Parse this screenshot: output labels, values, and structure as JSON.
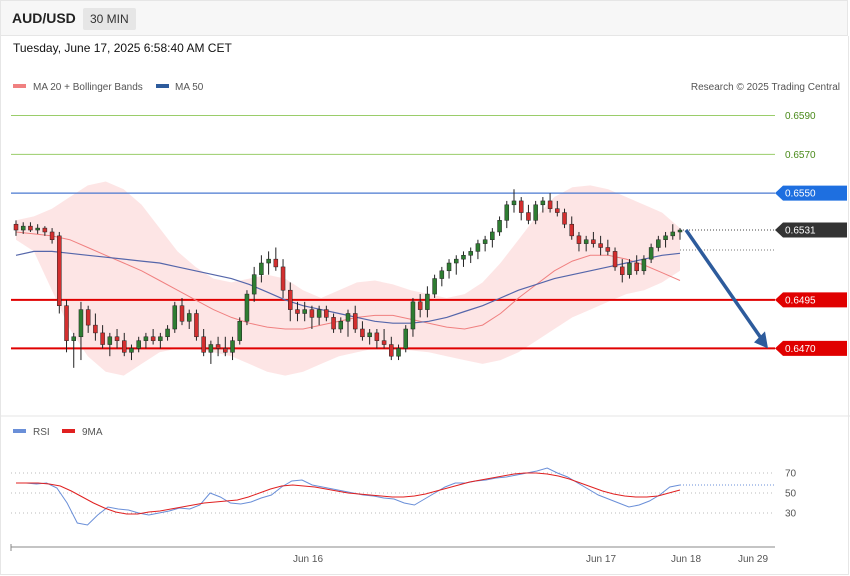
{
  "header": {
    "symbol": "AUD/USD",
    "timeframe": "30 MIN",
    "timestamp": "Tuesday, June 17, 2025 6:58:40 AM CET"
  },
  "legend": {
    "bb": "MA 20 + Bollinger Bands",
    "ma50": "MA 50",
    "credit": "Research © 2025 Trading Central"
  },
  "rsi_legend": {
    "rsi": "RSI",
    "ma9": "9MA"
  },
  "colors": {
    "bull": "#2e7d32",
    "bear": "#d32f2f",
    "band": "#fde0e0",
    "ma20": "#f08080",
    "ma50": "#5566aa",
    "arrow": "#2d5b9c",
    "rsi": "#6a8fd8",
    "rsi_ma": "#e02020"
  },
  "chart_data": [
    {
      "type": "candlestick",
      "title": "AUD/USD 30 MIN",
      "x_ticks": [
        "Jun 16",
        "Jun 17",
        "Jun 18",
        "Jun 29"
      ],
      "ylim": [
        0.6446,
        0.6598
      ],
      "levels": [
        {
          "label": "0.6590",
          "value": 0.659,
          "kind": "target"
        },
        {
          "label": "0.6570",
          "value": 0.657,
          "kind": "target"
        },
        {
          "label": "0.6550",
          "value": 0.655,
          "kind": "resistance"
        },
        {
          "label": "0.6531",
          "value": 0.6531,
          "kind": "last"
        },
        {
          "label": "0.6495",
          "value": 0.6495,
          "kind": "support"
        },
        {
          "label": "0.6470",
          "value": 0.647,
          "kind": "support"
        }
      ],
      "ohlc": [
        [
          0.6534,
          0.6536,
          0.6528,
          0.6531
        ],
        [
          0.6531,
          0.6535,
          0.6529,
          0.6533
        ],
        [
          0.6533,
          0.6535,
          0.653,
          0.6531
        ],
        [
          0.6531,
          0.6534,
          0.6529,
          0.6532
        ],
        [
          0.6532,
          0.6533,
          0.6528,
          0.653
        ],
        [
          0.653,
          0.6532,
          0.6524,
          0.6526
        ],
        [
          0.6528,
          0.653,
          0.6488,
          0.6492
        ],
        [
          0.6492,
          0.6495,
          0.6468,
          0.6474
        ],
        [
          0.6474,
          0.6478,
          0.646,
          0.6476
        ],
        [
          0.6476,
          0.6494,
          0.6464,
          0.649
        ],
        [
          0.649,
          0.6492,
          0.6478,
          0.6482
        ],
        [
          0.6482,
          0.6488,
          0.6474,
          0.6478
        ],
        [
          0.6478,
          0.6482,
          0.647,
          0.6472
        ],
        [
          0.6472,
          0.6478,
          0.6466,
          0.6476
        ],
        [
          0.6476,
          0.648,
          0.647,
          0.6474
        ],
        [
          0.6474,
          0.6478,
          0.6466,
          0.6468
        ],
        [
          0.6468,
          0.6472,
          0.6464,
          0.647
        ],
        [
          0.647,
          0.6476,
          0.6468,
          0.6474
        ],
        [
          0.6474,
          0.6478,
          0.647,
          0.6476
        ],
        [
          0.6476,
          0.648,
          0.6472,
          0.6474
        ],
        [
          0.6474,
          0.6478,
          0.647,
          0.6476
        ],
        [
          0.6476,
          0.6482,
          0.6474,
          0.648
        ],
        [
          0.648,
          0.6494,
          0.6478,
          0.6492
        ],
        [
          0.6492,
          0.6496,
          0.6482,
          0.6484
        ],
        [
          0.6484,
          0.649,
          0.648,
          0.6488
        ],
        [
          0.6488,
          0.649,
          0.6474,
          0.6476
        ],
        [
          0.6476,
          0.648,
          0.6466,
          0.6468
        ],
        [
          0.6468,
          0.6474,
          0.6462,
          0.6472
        ],
        [
          0.6472,
          0.6476,
          0.6466,
          0.647
        ],
        [
          0.647,
          0.6476,
          0.6466,
          0.6468
        ],
        [
          0.6468,
          0.6476,
          0.6464,
          0.6474
        ],
        [
          0.6474,
          0.6486,
          0.6472,
          0.6484
        ],
        [
          0.6484,
          0.65,
          0.6482,
          0.6498
        ],
        [
          0.6498,
          0.6512,
          0.6494,
          0.6508
        ],
        [
          0.6508,
          0.6518,
          0.6504,
          0.6514
        ],
        [
          0.6514,
          0.652,
          0.6508,
          0.6516
        ],
        [
          0.6516,
          0.6522,
          0.651,
          0.6512
        ],
        [
          0.6512,
          0.6516,
          0.6496,
          0.65
        ],
        [
          0.65,
          0.6504,
          0.6484,
          0.649
        ],
        [
          0.649,
          0.6494,
          0.6484,
          0.6488
        ],
        [
          0.6488,
          0.6494,
          0.6484,
          0.649
        ],
        [
          0.649,
          0.6492,
          0.648,
          0.6486
        ],
        [
          0.6486,
          0.6492,
          0.6482,
          0.649
        ],
        [
          0.649,
          0.6492,
          0.6484,
          0.6486
        ],
        [
          0.6486,
          0.6488,
          0.6478,
          0.648
        ],
        [
          0.648,
          0.6486,
          0.6478,
          0.6484
        ],
        [
          0.6484,
          0.649,
          0.6476,
          0.6488
        ],
        [
          0.6488,
          0.6492,
          0.6478,
          0.648
        ],
        [
          0.648,
          0.6484,
          0.6474,
          0.6476
        ],
        [
          0.6476,
          0.648,
          0.6472,
          0.6478
        ],
        [
          0.6478,
          0.648,
          0.647,
          0.6474
        ],
        [
          0.6474,
          0.648,
          0.647,
          0.6472
        ],
        [
          0.6472,
          0.6476,
          0.6464,
          0.6466
        ],
        [
          0.6466,
          0.6472,
          0.6464,
          0.647
        ],
        [
          0.647,
          0.6482,
          0.6468,
          0.648
        ],
        [
          0.648,
          0.6496,
          0.6476,
          0.6494
        ],
        [
          0.6494,
          0.6498,
          0.6486,
          0.649
        ],
        [
          0.649,
          0.6502,
          0.6486,
          0.6498
        ],
        [
          0.6498,
          0.6508,
          0.6496,
          0.6506
        ],
        [
          0.6506,
          0.6512,
          0.6502,
          0.651
        ],
        [
          0.651,
          0.6516,
          0.6506,
          0.6514
        ],
        [
          0.6514,
          0.6518,
          0.6508,
          0.6516
        ],
        [
          0.6516,
          0.652,
          0.6512,
          0.6518
        ],
        [
          0.6518,
          0.6522,
          0.6514,
          0.652
        ],
        [
          0.652,
          0.6526,
          0.6516,
          0.6524
        ],
        [
          0.6524,
          0.6528,
          0.652,
          0.6526
        ],
        [
          0.6526,
          0.6532,
          0.6522,
          0.653
        ],
        [
          0.653,
          0.6538,
          0.6528,
          0.6536
        ],
        [
          0.6536,
          0.6546,
          0.6532,
          0.6544
        ],
        [
          0.6544,
          0.6552,
          0.654,
          0.6546
        ],
        [
          0.6546,
          0.6548,
          0.6536,
          0.654
        ],
        [
          0.654,
          0.6544,
          0.6534,
          0.6536
        ],
        [
          0.6536,
          0.6546,
          0.6534,
          0.6544
        ],
        [
          0.6544,
          0.6548,
          0.654,
          0.6546
        ],
        [
          0.6546,
          0.655,
          0.654,
          0.6542
        ],
        [
          0.6542,
          0.6546,
          0.6538,
          0.654
        ],
        [
          0.654,
          0.6542,
          0.6532,
          0.6534
        ],
        [
          0.6534,
          0.6538,
          0.6526,
          0.6528
        ],
        [
          0.6528,
          0.653,
          0.652,
          0.6524
        ],
        [
          0.6524,
          0.6528,
          0.652,
          0.6526
        ],
        [
          0.6526,
          0.653,
          0.6522,
          0.6524
        ],
        [
          0.6524,
          0.6528,
          0.6518,
          0.6522
        ],
        [
          0.6522,
          0.6526,
          0.6518,
          0.652
        ],
        [
          0.652,
          0.6522,
          0.651,
          0.6512
        ],
        [
          0.6512,
          0.6516,
          0.6504,
          0.6508
        ],
        [
          0.6508,
          0.6516,
          0.6506,
          0.6514
        ],
        [
          0.6514,
          0.6518,
          0.6508,
          0.651
        ],
        [
          0.651,
          0.6518,
          0.6508,
          0.6516
        ],
        [
          0.6516,
          0.6524,
          0.6514,
          0.6522
        ],
        [
          0.6522,
          0.6528,
          0.652,
          0.6526
        ],
        [
          0.6526,
          0.653,
          0.6522,
          0.6528
        ],
        [
          0.6528,
          0.6534,
          0.6526,
          0.653
        ],
        [
          0.653,
          0.6532,
          0.6526,
          0.6531
        ]
      ],
      "ma20": [
        0.653,
        0.6529,
        0.6528,
        0.6526,
        0.6522,
        0.6518,
        0.6514,
        0.651,
        0.6505,
        0.65,
        0.6495,
        0.649,
        0.6486,
        0.6483,
        0.6481,
        0.648,
        0.648,
        0.6482,
        0.6484,
        0.6486,
        0.6487,
        0.6487,
        0.6485,
        0.6483,
        0.6481,
        0.648,
        0.6482,
        0.6488,
        0.6496,
        0.6503,
        0.651,
        0.6515,
        0.6518,
        0.6518,
        0.6516,
        0.6513,
        0.6509,
        0.6505
      ],
      "ma50": [
        0.6518,
        0.652,
        0.652,
        0.6519,
        0.6518,
        0.6517,
        0.6516,
        0.6515,
        0.6514,
        0.6512,
        0.651,
        0.6508,
        0.6506,
        0.6503,
        0.6499,
        0.6495,
        0.6492,
        0.649,
        0.6488,
        0.6486,
        0.6484,
        0.6483,
        0.6483,
        0.6484,
        0.6486,
        0.6489,
        0.6492,
        0.6496,
        0.65,
        0.6503,
        0.6506,
        0.6508,
        0.651,
        0.6512,
        0.6514,
        0.6516,
        0.6518,
        0.6519
      ],
      "bb_upper": [
        0.6536,
        0.6538,
        0.6542,
        0.6548,
        0.6554,
        0.6556,
        0.6552,
        0.6544,
        0.6532,
        0.652,
        0.6512,
        0.6506,
        0.6504,
        0.6506,
        0.6508,
        0.6506,
        0.65,
        0.6496,
        0.65,
        0.6504,
        0.6505,
        0.6503,
        0.65,
        0.6498,
        0.6496,
        0.6498,
        0.6504,
        0.6514,
        0.6526,
        0.6538,
        0.6548,
        0.6553,
        0.6554,
        0.6552,
        0.6548,
        0.6544,
        0.654,
        0.6532
      ],
      "bb_lower": [
        0.6526,
        0.652,
        0.65,
        0.648,
        0.6466,
        0.6458,
        0.6456,
        0.6462,
        0.6468,
        0.647,
        0.647,
        0.6468,
        0.6466,
        0.6462,
        0.6458,
        0.6456,
        0.6458,
        0.6462,
        0.6466,
        0.6468,
        0.647,
        0.647,
        0.6469,
        0.6468,
        0.6466,
        0.6464,
        0.6462,
        0.6464,
        0.6468,
        0.6474,
        0.648,
        0.6486,
        0.649,
        0.6494,
        0.6498,
        0.65,
        0.6504,
        0.651
      ],
      "forecast": {
        "from": 0.6531,
        "to": 0.647
      }
    },
    {
      "type": "line",
      "title": "RSI",
      "yticks": [
        70,
        50,
        30
      ],
      "series": [
        {
          "name": "RSI",
          "values": [
            60,
            60,
            59,
            60,
            55,
            40,
            20,
            18,
            28,
            36,
            34,
            33,
            30,
            28,
            30,
            32,
            35,
            34,
            38,
            50,
            46,
            40,
            39,
            41,
            45,
            48,
            56,
            62,
            63,
            58,
            56,
            54,
            52,
            50,
            48,
            47,
            45,
            44,
            40,
            38,
            44,
            50,
            56,
            60,
            60,
            62,
            63,
            65,
            66,
            68,
            70,
            72,
            75,
            70,
            66,
            60,
            54,
            48,
            44,
            40,
            36,
            38,
            42,
            48,
            56,
            58
          ]
        },
        {
          "name": "9MA",
          "values": [
            60,
            60,
            60,
            59,
            57,
            52,
            46,
            40,
            35,
            31,
            29,
            29,
            31,
            32,
            34,
            36,
            38,
            40,
            41,
            42,
            43,
            46,
            50,
            54,
            57,
            58,
            57,
            56,
            54,
            52,
            50,
            49,
            48,
            47,
            46,
            46,
            47,
            49,
            52,
            55,
            58,
            61,
            63,
            65,
            67,
            69,
            70,
            70,
            69,
            67,
            64,
            60,
            56,
            52,
            49,
            47,
            46,
            46,
            47,
            50,
            53
          ]
        }
      ]
    }
  ]
}
